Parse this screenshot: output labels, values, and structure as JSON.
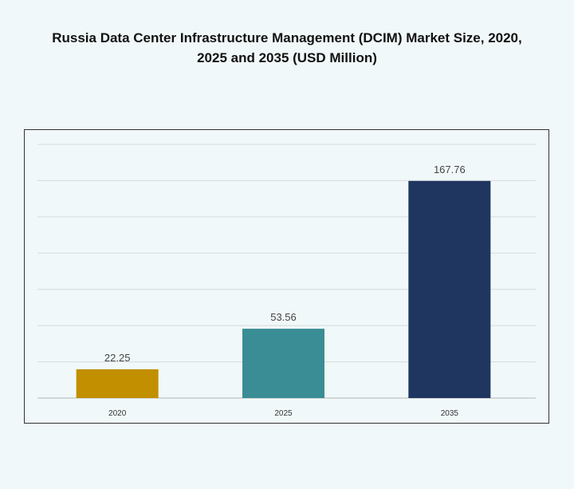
{
  "chart_data": {
    "type": "bar",
    "title": "Russia Data Center Infrastructure  Management (DCIM) Market Size, 2020, 2025 and 2035 (USD Million)",
    "title_lines": [
      "Russia Data Center Infrastructure  Management (DCIM) Market Size, 2020,",
      "2025 and 2035 (USD Million)"
    ],
    "categories": [
      "2020",
      "2025",
      "2035"
    ],
    "values": [
      22.25,
      53.56,
      167.76
    ],
    "value_labels": [
      "22.25",
      "53.56",
      "167.76"
    ],
    "colors": [
      "#c18f00",
      "#3a8c95",
      "#1f3660"
    ],
    "xlabel": "",
    "ylabel": "",
    "ylim": [
      0,
      196
    ],
    "grid": true,
    "legend": "none"
  }
}
